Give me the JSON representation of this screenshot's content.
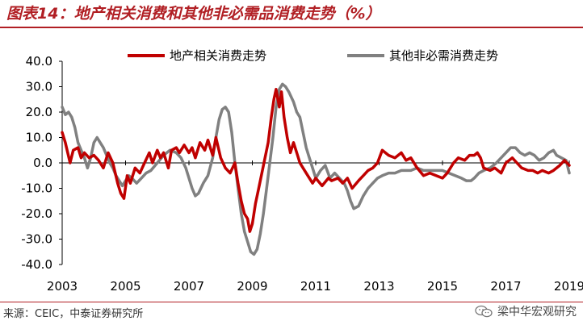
{
  "header": {
    "title": "图表14：地产相关消费和其他非必需品消费走势（%）"
  },
  "footer": {
    "source": "来源：CEIC，中泰证券研究所",
    "watermark": "梁中华宏观研究"
  },
  "colors": {
    "accent": "#b11f24",
    "series_red": "#c00000",
    "series_gray": "#808080"
  },
  "chart_data": {
    "type": "line",
    "title": "",
    "xlabel": "",
    "ylabel": "",
    "ylim": [
      -40,
      40
    ],
    "xlim": [
      2003,
      2019
    ],
    "yticks": [
      "40.0",
      "30.0",
      "20.0",
      "10.0",
      "0.0",
      "-10.0",
      "-20.0",
      "-30.0",
      "-40.0"
    ],
    "xticks": [
      "2003",
      "2005",
      "2007",
      "2009",
      "2011",
      "2013",
      "2015",
      "2017",
      "2019"
    ],
    "grid": false,
    "legend": "top",
    "series": [
      {
        "name": "地产相关消费走势",
        "color": "#c00000",
        "points": [
          [
            2003.0,
            12
          ],
          [
            2003.1,
            8
          ],
          [
            2003.25,
            0
          ],
          [
            2003.35,
            5
          ],
          [
            2003.5,
            6
          ],
          [
            2003.6,
            2
          ],
          [
            2003.7,
            4
          ],
          [
            2003.85,
            2
          ],
          [
            2004.0,
            3
          ],
          [
            2004.15,
            1
          ],
          [
            2004.3,
            -2
          ],
          [
            2004.45,
            4
          ],
          [
            2004.6,
            0
          ],
          [
            2004.75,
            -8
          ],
          [
            2004.85,
            -12
          ],
          [
            2004.95,
            -14
          ],
          [
            2005.05,
            -5
          ],
          [
            2005.15,
            -8
          ],
          [
            2005.3,
            -2
          ],
          [
            2005.45,
            -4
          ],
          [
            2005.6,
            0
          ],
          [
            2005.75,
            4
          ],
          [
            2005.85,
            0
          ],
          [
            2006.0,
            5
          ],
          [
            2006.1,
            2
          ],
          [
            2006.2,
            4
          ],
          [
            2006.35,
            -2
          ],
          [
            2006.45,
            5
          ],
          [
            2006.6,
            6
          ],
          [
            2006.7,
            4
          ],
          [
            2006.85,
            7
          ],
          [
            2007.0,
            4
          ],
          [
            2007.1,
            6
          ],
          [
            2007.2,
            2
          ],
          [
            2007.35,
            8
          ],
          [
            2007.5,
            5
          ],
          [
            2007.6,
            9
          ],
          [
            2007.75,
            3
          ],
          [
            2007.85,
            10
          ],
          [
            2008.0,
            2
          ],
          [
            2008.15,
            -2
          ],
          [
            2008.3,
            -4
          ],
          [
            2008.45,
            0
          ],
          [
            2008.55,
            -8
          ],
          [
            2008.65,
            -15
          ],
          [
            2008.75,
            -20
          ],
          [
            2008.85,
            -22
          ],
          [
            2008.92,
            -27
          ],
          [
            2009.0,
            -24
          ],
          [
            2009.1,
            -16
          ],
          [
            2009.2,
            -10
          ],
          [
            2009.3,
            -4
          ],
          [
            2009.4,
            2
          ],
          [
            2009.5,
            8
          ],
          [
            2009.6,
            18
          ],
          [
            2009.68,
            25
          ],
          [
            2009.75,
            29
          ],
          [
            2009.85,
            22
          ],
          [
            2009.92,
            28
          ],
          [
            2010.0,
            18
          ],
          [
            2010.1,
            10
          ],
          [
            2010.2,
            4
          ],
          [
            2010.3,
            8
          ],
          [
            2010.4,
            4
          ],
          [
            2010.5,
            0
          ],
          [
            2010.6,
            -2
          ],
          [
            2010.75,
            -5
          ],
          [
            2010.9,
            -8
          ],
          [
            2011.0,
            -6
          ],
          [
            2011.2,
            -9
          ],
          [
            2011.4,
            -6
          ],
          [
            2011.5,
            -7
          ],
          [
            2011.7,
            -6
          ],
          [
            2011.85,
            -8
          ],
          [
            2012.0,
            -6
          ],
          [
            2012.15,
            -10
          ],
          [
            2012.35,
            -7
          ],
          [
            2012.5,
            -5
          ],
          [
            2012.65,
            -3
          ],
          [
            2012.8,
            -2
          ],
          [
            2012.95,
            0
          ],
          [
            2013.1,
            5
          ],
          [
            2013.3,
            3
          ],
          [
            2013.5,
            2
          ],
          [
            2013.7,
            4
          ],
          [
            2013.85,
            1
          ],
          [
            2014.0,
            2
          ],
          [
            2014.2,
            -2
          ],
          [
            2014.4,
            -5
          ],
          [
            2014.6,
            -4
          ],
          [
            2014.8,
            -5
          ],
          [
            2015.0,
            -6
          ],
          [
            2015.15,
            -4
          ],
          [
            2015.35,
            0
          ],
          [
            2015.5,
            2
          ],
          [
            2015.7,
            1
          ],
          [
            2015.85,
            3
          ],
          [
            2016.0,
            3
          ],
          [
            2016.1,
            4
          ],
          [
            2016.2,
            2
          ],
          [
            2016.3,
            -2
          ],
          [
            2016.5,
            -3
          ],
          [
            2016.65,
            -2
          ],
          [
            2016.85,
            -4
          ],
          [
            2017.0,
            0
          ],
          [
            2017.2,
            2
          ],
          [
            2017.35,
            0
          ],
          [
            2017.5,
            -2
          ],
          [
            2017.7,
            -3
          ],
          [
            2017.85,
            -3
          ],
          [
            2018.0,
            -4
          ],
          [
            2018.15,
            -3
          ],
          [
            2018.35,
            -4
          ],
          [
            2018.5,
            -3
          ],
          [
            2018.7,
            -1
          ],
          [
            2018.85,
            1
          ],
          [
            2019.0,
            -1
          ]
        ]
      },
      {
        "name": "其他非必需消费走势",
        "color": "#808080",
        "points": [
          [
            2003.0,
            22
          ],
          [
            2003.1,
            19
          ],
          [
            2003.2,
            20
          ],
          [
            2003.3,
            18
          ],
          [
            2003.4,
            14
          ],
          [
            2003.5,
            8
          ],
          [
            2003.6,
            5
          ],
          [
            2003.7,
            2
          ],
          [
            2003.8,
            -2
          ],
          [
            2003.9,
            2
          ],
          [
            2004.0,
            8
          ],
          [
            2004.1,
            10
          ],
          [
            2004.2,
            8
          ],
          [
            2004.3,
            6
          ],
          [
            2004.4,
            3
          ],
          [
            2004.5,
            0
          ],
          [
            2004.6,
            -2
          ],
          [
            2004.7,
            -5
          ],
          [
            2004.8,
            -7
          ],
          [
            2004.9,
            -9
          ],
          [
            2005.0,
            -7
          ],
          [
            2005.1,
            -5
          ],
          [
            2005.2,
            -6
          ],
          [
            2005.35,
            -8
          ],
          [
            2005.5,
            -6
          ],
          [
            2005.65,
            -4
          ],
          [
            2005.8,
            -3
          ],
          [
            2006.0,
            0
          ],
          [
            2006.2,
            3
          ],
          [
            2006.4,
            5
          ],
          [
            2006.6,
            4
          ],
          [
            2006.75,
            2
          ],
          [
            2006.9,
            -2
          ],
          [
            2007.0,
            -6
          ],
          [
            2007.1,
            -10
          ],
          [
            2007.2,
            -13
          ],
          [
            2007.3,
            -12
          ],
          [
            2007.45,
            -8
          ],
          [
            2007.6,
            -5
          ],
          [
            2007.75,
            2
          ],
          [
            2007.85,
            10
          ],
          [
            2007.95,
            17
          ],
          [
            2008.05,
            21
          ],
          [
            2008.15,
            22
          ],
          [
            2008.25,
            20
          ],
          [
            2008.35,
            12
          ],
          [
            2008.45,
            0
          ],
          [
            2008.55,
            -10
          ],
          [
            2008.65,
            -20
          ],
          [
            2008.75,
            -27
          ],
          [
            2008.85,
            -31
          ],
          [
            2008.95,
            -35
          ],
          [
            2009.05,
            -36
          ],
          [
            2009.15,
            -34
          ],
          [
            2009.25,
            -28
          ],
          [
            2009.35,
            -20
          ],
          [
            2009.45,
            -10
          ],
          [
            2009.55,
            0
          ],
          [
            2009.65,
            10
          ],
          [
            2009.75,
            22
          ],
          [
            2009.85,
            29
          ],
          [
            2009.95,
            31
          ],
          [
            2010.05,
            30
          ],
          [
            2010.15,
            28
          ],
          [
            2010.3,
            24
          ],
          [
            2010.4,
            20
          ],
          [
            2010.5,
            18
          ],
          [
            2010.6,
            12
          ],
          [
            2010.7,
            6
          ],
          [
            2010.8,
            2
          ],
          [
            2010.9,
            -2
          ],
          [
            2011.0,
            -6
          ],
          [
            2011.15,
            -3
          ],
          [
            2011.3,
            -1
          ],
          [
            2011.45,
            -6
          ],
          [
            2011.6,
            -4
          ],
          [
            2011.75,
            -6
          ],
          [
            2011.9,
            -8
          ],
          [
            2012.0,
            -11
          ],
          [
            2012.1,
            -15
          ],
          [
            2012.2,
            -18
          ],
          [
            2012.35,
            -17
          ],
          [
            2012.5,
            -13
          ],
          [
            2012.65,
            -10
          ],
          [
            2012.8,
            -8
          ],
          [
            2012.95,
            -6
          ],
          [
            2013.1,
            -5
          ],
          [
            2013.3,
            -4
          ],
          [
            2013.5,
            -4
          ],
          [
            2013.7,
            -3
          ],
          [
            2013.85,
            -3
          ],
          [
            2014.0,
            -3
          ],
          [
            2014.2,
            -2
          ],
          [
            2014.4,
            -3
          ],
          [
            2014.6,
            -3
          ],
          [
            2014.8,
            -3
          ],
          [
            2015.0,
            -3
          ],
          [
            2015.2,
            -4
          ],
          [
            2015.4,
            -5
          ],
          [
            2015.6,
            -6
          ],
          [
            2015.75,
            -7
          ],
          [
            2015.9,
            -7
          ],
          [
            2016.0,
            -6
          ],
          [
            2016.15,
            -4
          ],
          [
            2016.3,
            -3
          ],
          [
            2016.5,
            -2
          ],
          [
            2016.7,
            0
          ],
          [
            2016.85,
            2
          ],
          [
            2017.0,
            4
          ],
          [
            2017.15,
            6
          ],
          [
            2017.3,
            6
          ],
          [
            2017.45,
            4
          ],
          [
            2017.6,
            3
          ],
          [
            2017.75,
            4
          ],
          [
            2017.9,
            3
          ],
          [
            2018.05,
            1
          ],
          [
            2018.2,
            2
          ],
          [
            2018.35,
            4
          ],
          [
            2018.5,
            5
          ],
          [
            2018.6,
            3
          ],
          [
            2018.75,
            2
          ],
          [
            2018.9,
            1
          ],
          [
            2019.0,
            -4
          ]
        ]
      }
    ]
  }
}
